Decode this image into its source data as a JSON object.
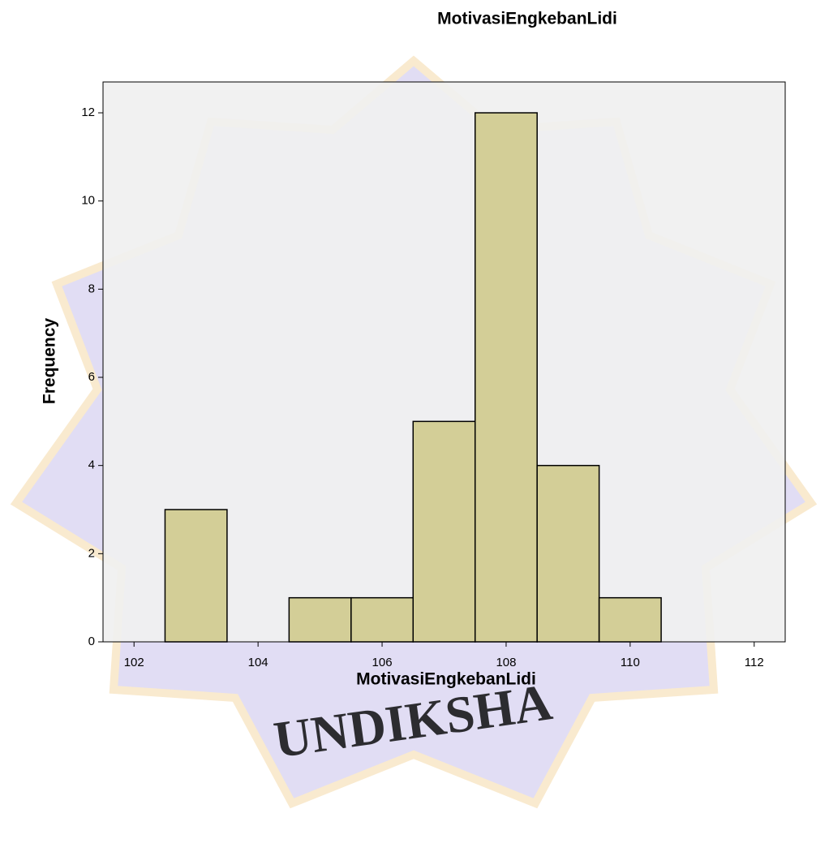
{
  "chart_data": {
    "type": "histogram",
    "title": "MotivasiEngkebanLidi",
    "x_label": "MotivasiEngkebanLidi",
    "y_label": "Frequency",
    "bins": [
      102.5,
      103.5,
      104.5,
      105.5,
      106.5,
      107.5,
      108.5,
      109.5,
      110.5
    ],
    "values": [
      3,
      0,
      1,
      1,
      5,
      12,
      4,
      1
    ],
    "color": "#d3ce97",
    "xlim": [
      101.5,
      112.5
    ],
    "xticks": [
      102,
      104,
      106,
      108,
      110,
      112
    ],
    "ylim": [
      0,
      12.7
    ],
    "yticks": [
      0,
      2,
      4,
      6,
      8,
      10,
      12
    ],
    "watermark": "UNDIKSHA"
  }
}
